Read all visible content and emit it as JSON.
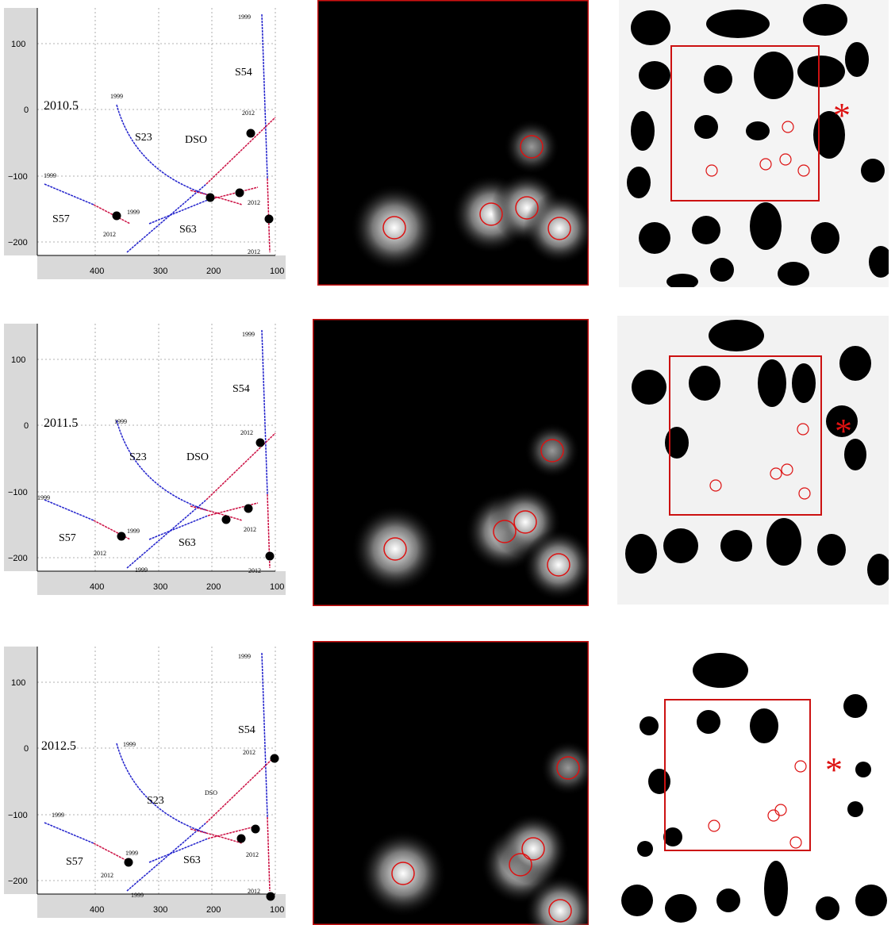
{
  "rows": [
    {
      "epoch": "2010.5",
      "labels": {
        "s54": "S54",
        "s23": "S23",
        "dso": "DSO",
        "s57": "S57",
        "s63": "S63",
        "y1999_a": "1999",
        "y1999_b": "1999",
        "y1999_c": "1999",
        "y1999_d": "1999",
        "y2012_a": "2012",
        "y2012_b": "2012",
        "y2012_c": "2012",
        "y2012_d": "2012"
      }
    },
    {
      "epoch": "2011.5",
      "labels": {
        "s54": "S54",
        "s23": "S23",
        "dso": "DSO",
        "s57": "S57",
        "s63": "S63",
        "y1999_a": "1999",
        "y1999_b": "1999",
        "y1999_c": "1999",
        "y1999_d": "1999",
        "y1999_e": "1999",
        "y2012_a": "2012",
        "y2012_b": "2012",
        "y2012_c": "2012",
        "y2012_d": "2012"
      }
    },
    {
      "epoch": "2012.5",
      "labels": {
        "s54": "S54",
        "s23": "S23",
        "dso": "DSO",
        "s57": "S57",
        "s63": "S63",
        "y1999_a": "1999",
        "y1999_b": "1999",
        "y1999_c": "1999",
        "y1999_d": "1999",
        "y1999_e": "1999",
        "y2012_a": "2012",
        "y2012_b": "2012",
        "y2012_c": "2012",
        "y2012_d": "2012"
      }
    }
  ],
  "axes": {
    "y_ticks": [
      "100",
      "0",
      "−100",
      "−200"
    ],
    "x_ticks": [
      "400",
      "300",
      "200",
      "100"
    ]
  },
  "colors": {
    "early_orbit": "#2222cc",
    "late_orbit": "#cc1144",
    "marker": "#000000",
    "highlight": "#dd1111",
    "frame": "#cc1111"
  },
  "icons": {
    "star_marker": "asterisk"
  }
}
